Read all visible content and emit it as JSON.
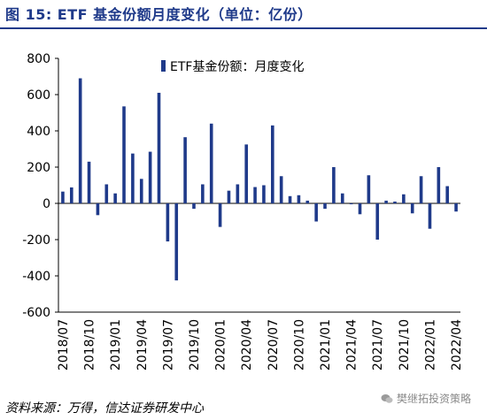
{
  "figure": {
    "title": "图 15: ETF 基金份额月度变化（单位：亿份）",
    "source": "资料来源：万得，信达证券研发中心",
    "watermark": "樊继拓投资策略"
  },
  "colors": {
    "bar": "#1f3a8a",
    "title": "#1f3a8a"
  },
  "chart_data": {
    "type": "bar",
    "title": "",
    "xlabel": "",
    "ylabel": "",
    "ylim": [
      -600,
      800
    ],
    "yticks": [
      -600,
      -400,
      -200,
      0,
      200,
      400,
      600,
      800
    ],
    "legend": "top-center",
    "grid": false,
    "categories": [
      "2018/07",
      "2018/08",
      "2018/09",
      "2018/10",
      "2018/11",
      "2018/12",
      "2019/01",
      "2019/02",
      "2019/03",
      "2019/04",
      "2019/05",
      "2019/06",
      "2019/07",
      "2019/08",
      "2019/09",
      "2019/10",
      "2019/11",
      "2019/12",
      "2020/01",
      "2020/02",
      "2020/03",
      "2020/04",
      "2020/05",
      "2020/06",
      "2020/07",
      "2020/08",
      "2020/09",
      "2020/10",
      "2020/11",
      "2020/12",
      "2021/01",
      "2021/02",
      "2021/03",
      "2021/04",
      "2021/05",
      "2021/06",
      "2021/07",
      "2021/08",
      "2021/09",
      "2021/10",
      "2021/11",
      "2021/12",
      "2022/01",
      "2022/02",
      "2022/03",
      "2022/04"
    ],
    "xtick_labels": [
      "2018/07",
      "2018/10",
      "2019/01",
      "2019/04",
      "2019/07",
      "2019/10",
      "2020/01",
      "2020/04",
      "2020/07",
      "2020/10",
      "2021/01",
      "2021/04",
      "2021/07",
      "2021/10",
      "2022/01",
      "2022/04"
    ],
    "series": [
      {
        "name": "ETF基金份额：月度变化",
        "values": [
          65,
          88,
          690,
          230,
          -65,
          105,
          55,
          535,
          275,
          135,
          285,
          610,
          -210,
          -425,
          365,
          -30,
          105,
          440,
          -130,
          70,
          105,
          325,
          90,
          100,
          430,
          150,
          40,
          45,
          15,
          -100,
          -30,
          200,
          55,
          -5,
          -60,
          155,
          -200,
          15,
          10,
          50,
          -55,
          150,
          -140,
          200,
          95,
          -45
        ]
      }
    ]
  }
}
